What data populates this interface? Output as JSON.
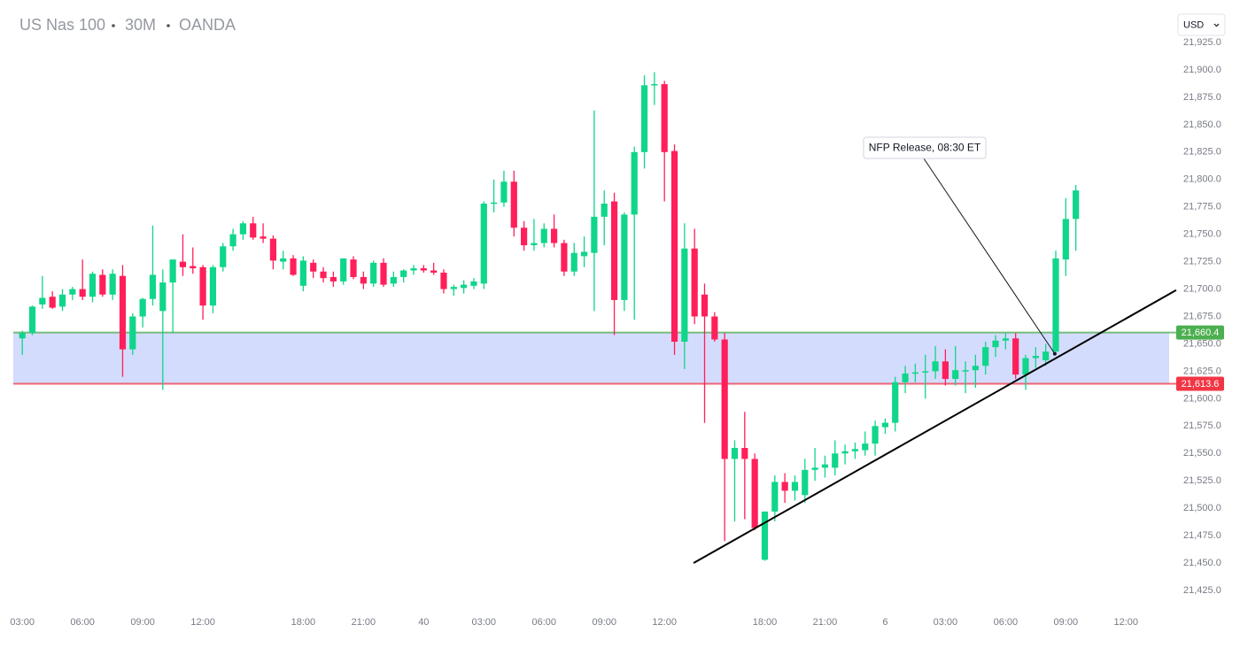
{
  "chart_data": {
    "type": "candlestick",
    "title_parts": [
      "US Nas 100",
      "30M",
      "OANDA"
    ],
    "currency": "USD",
    "up_color": "#0fd68a",
    "down_color": "#ff1f5a",
    "xlim": [
      -0.9,
      114.3
    ],
    "ylim": [
      21406.4,
      21963.8
    ],
    "xticks": [
      {
        "value": 0,
        "label": "03:00"
      },
      {
        "value": 6,
        "label": "06:00"
      },
      {
        "value": 12,
        "label": "09:00"
      },
      {
        "value": 18,
        "label": "12:00"
      },
      {
        "value": 28,
        "label": "18:00"
      },
      {
        "value": 34,
        "label": "21:00"
      },
      40,
      {
        "value": 46,
        "label": "03:00"
      },
      {
        "value": 52,
        "label": "06:00"
      },
      {
        "value": 58,
        "label": "09:00"
      },
      {
        "value": 64,
        "label": "12:00"
      },
      {
        "value": 74,
        "label": "18:00"
      },
      {
        "value": 80,
        "label": "21:00"
      },
      {
        "value": 86,
        "label": "6"
      },
      {
        "value": 92,
        "label": "03:00"
      },
      {
        "value": 98,
        "label": "06:00"
      },
      {
        "value": 104,
        "label": "09:00"
      },
      {
        "value": 110,
        "label": "12:00"
      }
    ],
    "yticks": [
      {
        "value": 21425,
        "label": "21,425.0"
      },
      {
        "value": 21450,
        "label": "21,450.0"
      },
      {
        "value": 21475,
        "label": "21,475.0"
      },
      {
        "value": 21500,
        "label": "21,500.0"
      },
      {
        "value": 21525,
        "label": "21,525.0"
      },
      {
        "value": 21550,
        "label": "21,550.0"
      },
      {
        "value": 21575,
        "label": "21,575.0"
      },
      {
        "value": 21600,
        "label": "21,600.0"
      },
      {
        "value": 21625,
        "label": "21,625.0"
      },
      {
        "value": 21650,
        "label": "21,650.0"
      },
      {
        "value": 21675,
        "label": "21,675.0"
      },
      {
        "value": 21700,
        "label": "21,700.0"
      },
      {
        "value": 21725,
        "label": "21,725.0"
      },
      {
        "value": 21750,
        "label": "21,750.0"
      },
      {
        "value": 21775,
        "label": "21,775.0"
      },
      {
        "value": 21800,
        "label": "21,800.0"
      },
      {
        "value": 21825,
        "label": "21,825.0"
      },
      {
        "value": 21850,
        "label": "21,850.0"
      },
      {
        "value": 21875,
        "label": "21,875.0"
      },
      {
        "value": 21900,
        "label": "21,900.0"
      },
      {
        "value": 21925,
        "label": "21,925.0"
      }
    ],
    "candles": [
      [
        21655,
        21662,
        21640,
        21660
      ],
      [
        21660,
        21685,
        21658,
        21684
      ],
      [
        21686,
        21712,
        21682,
        21692
      ],
      [
        21693,
        21698,
        21682,
        21683
      ],
      [
        21684,
        21700,
        21680,
        21695
      ],
      [
        21695,
        21702,
        21690,
        21700
      ],
      [
        21700,
        21727,
        21690,
        21693
      ],
      [
        21693,
        21716,
        21688,
        21714
      ],
      [
        21713,
        21718,
        21693,
        21695
      ],
      [
        21695,
        21718,
        21690,
        21714
      ],
      [
        21712,
        21722,
        21620,
        21645
      ],
      [
        21645,
        21678,
        21640,
        21675
      ],
      [
        21675,
        21692,
        21665,
        21691
      ],
      [
        21691,
        21758,
        21685,
        21713
      ],
      [
        21680,
        21718,
        21608,
        21706
      ],
      [
        21706,
        21726,
        21660,
        21727
      ],
      [
        21725,
        21750,
        21712,
        21720
      ],
      [
        21721,
        21738,
        21714,
        21719
      ],
      [
        21720,
        21722,
        21672,
        21685
      ],
      [
        21685,
        21722,
        21678,
        21720
      ],
      [
        21720,
        21742,
        21716,
        21739
      ],
      [
        21739,
        21755,
        21735,
        21750
      ],
      [
        21750,
        21762,
        21745,
        21760
      ],
      [
        21760,
        21766,
        21745,
        21747
      ],
      [
        21748,
        21760,
        21742,
        21746
      ],
      [
        21746,
        21749,
        21718,
        21726
      ],
      [
        21725,
        21735,
        21718,
        21728
      ],
      [
        21728,
        21731,
        21712,
        21713
      ],
      [
        21703,
        21730,
        21698,
        21726
      ],
      [
        21724,
        21727,
        21710,
        21716
      ],
      [
        21716,
        21720,
        21706,
        21710
      ],
      [
        21711,
        21716,
        21702,
        21707
      ],
      [
        21707,
        21728,
        21704,
        21728
      ],
      [
        21727,
        21730,
        21709,
        21711
      ],
      [
        21711,
        21716,
        21700,
        21705
      ],
      [
        21705,
        21726,
        21702,
        21724
      ],
      [
        21724,
        21728,
        21702,
        21704
      ],
      [
        21705,
        21716,
        21702,
        21711
      ],
      [
        21711,
        21718,
        21706,
        21717
      ],
      [
        21717,
        21722,
        21713,
        21719
      ],
      [
        21719,
        21722,
        21715,
        21717
      ],
      [
        21717,
        21724,
        21713,
        21715
      ],
      [
        21715,
        21718,
        21696,
        21700
      ],
      [
        21700,
        21704,
        21694,
        21702
      ],
      [
        21701,
        21708,
        21696,
        21704
      ],
      [
        21703,
        21710,
        21700,
        21707
      ],
      [
        21705,
        21780,
        21700,
        21778
      ],
      [
        21778,
        21800,
        21770,
        21779
      ],
      [
        21779,
        21808,
        21775,
        21798
      ],
      [
        21798,
        21808,
        21748,
        21756
      ],
      [
        21756,
        21762,
        21735,
        21740
      ],
      [
        21740,
        21764,
        21735,
        21742
      ],
      [
        21742,
        21760,
        21738,
        21755
      ],
      [
        21755,
        21768,
        21738,
        21742
      ],
      [
        21742,
        21745,
        21712,
        21716
      ],
      [
        21716,
        21742,
        21712,
        21733
      ],
      [
        21730,
        21748,
        21720,
        21734
      ],
      [
        21733,
        21863,
        21680,
        21766
      ],
      [
        21766,
        21790,
        21740,
        21778
      ],
      [
        21780,
        21788,
        21658,
        21690
      ],
      [
        21690,
        21770,
        21680,
        21768
      ],
      [
        21768,
        21830,
        21672,
        21825
      ],
      [
        21825,
        21895,
        21810,
        21886
      ],
      [
        21886,
        21898,
        21868,
        21887
      ],
      [
        21887,
        21890,
        21780,
        21825
      ],
      [
        21826,
        21832,
        21640,
        21652
      ],
      [
        21652,
        21760,
        21627,
        21737
      ],
      [
        21737,
        21755,
        21668,
        21675
      ],
      [
        21695,
        21705,
        21578,
        21675
      ],
      [
        21675,
        21679,
        21652,
        21654
      ],
      [
        21654,
        21660,
        21470,
        21545
      ],
      [
        21545,
        21562,
        21488,
        21555
      ],
      [
        21555,
        21588,
        21490,
        21545
      ],
      [
        21545,
        21550,
        21480,
        21482
      ],
      [
        21453,
        21497,
        21452,
        21497
      ],
      [
        21497,
        21530,
        21488,
        21524
      ],
      [
        21524,
        21532,
        21505,
        21516
      ],
      [
        21516,
        21530,
        21507,
        21524
      ],
      [
        21512,
        21545,
        21505,
        21535
      ],
      [
        21535,
        21555,
        21525,
        21537
      ],
      [
        21537,
        21548,
        21528,
        21540
      ],
      [
        21537,
        21562,
        21530,
        21550
      ],
      [
        21550,
        21558,
        21540,
        21552
      ],
      [
        21552,
        21560,
        21545,
        21554
      ],
      [
        21553,
        21570,
        21548,
        21559
      ],
      [
        21559,
        21580,
        21548,
        21575
      ],
      [
        21574,
        21582,
        21568,
        21578
      ],
      [
        21578,
        21620,
        21570,
        21615
      ],
      [
        21615,
        21630,
        21605,
        21623
      ],
      [
        21623,
        21632,
        21615,
        21624
      ],
      [
        21624,
        21640,
        21600,
        21625
      ],
      [
        21625,
        21648,
        21618,
        21634
      ],
      [
        21634,
        21645,
        21612,
        21618
      ],
      [
        21618,
        21648,
        21612,
        21626
      ],
      [
        21625,
        21634,
        21605,
        21626
      ],
      [
        21626,
        21640,
        21610,
        21630
      ],
      [
        21630,
        21652,
        21622,
        21647
      ],
      [
        21647,
        21658,
        21638,
        21653
      ],
      [
        21653,
        21660,
        21645,
        21655
      ],
      [
        21655,
        21660,
        21618,
        21622
      ],
      [
        21622,
        21640,
        21608,
        21637
      ],
      [
        21637,
        21647,
        21628,
        21639
      ],
      [
        21635,
        21650,
        21630,
        21643
      ],
      [
        21643,
        21735,
        21640,
        21728
      ],
      [
        21727,
        21783,
        21712,
        21764
      ],
      [
        21764,
        21795,
        21735,
        21790
      ]
    ],
    "zone": {
      "y": [
        21613.6,
        21660.4
      ],
      "color": "#d4dcfd"
    },
    "horizontal_lines": [
      {
        "value": 21660.4,
        "label": "21,660.4",
        "color": "#4caf50"
      },
      {
        "value": 21613.6,
        "label": "21,613.6",
        "color": "#f23645"
      }
    ],
    "trendline": {
      "x": [
        66.9,
        115
      ],
      "y": [
        21450,
        21699
      ],
      "color": "#000000"
    },
    "annotation": {
      "text": "NFP Release, 08:30 ET",
      "x": 102.9,
      "y": 21641
    }
  }
}
